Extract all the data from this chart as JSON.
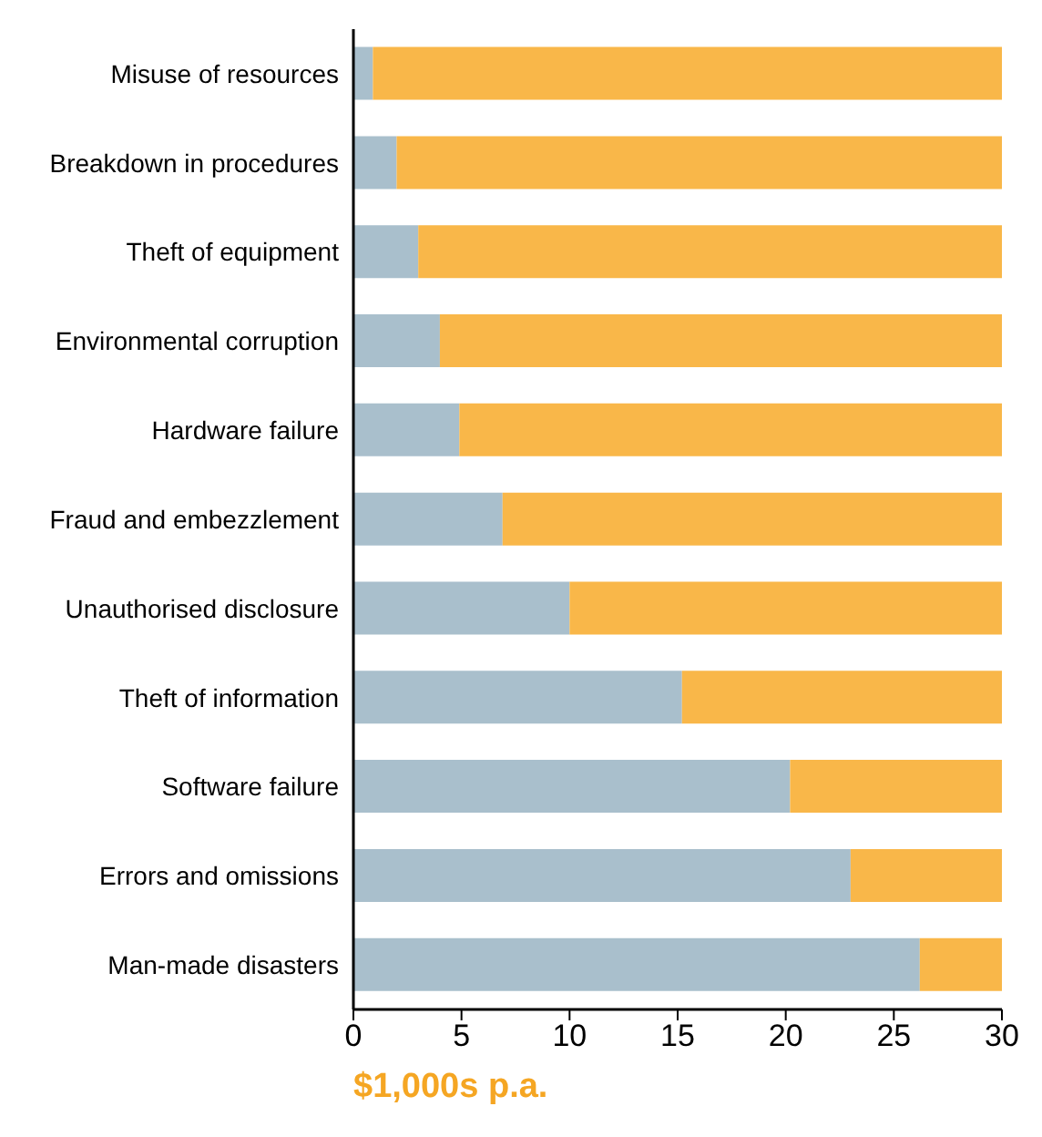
{
  "chart_data": {
    "type": "bar",
    "orientation": "horizontal",
    "stacked": true,
    "xlabel": "$1,000s p.a.",
    "categories": [
      "Misuse of resources",
      "Breakdown in procedures",
      "Theft of equipment",
      "Environmental corruption",
      "Hardware failure",
      "Fraud and embezzlement",
      "Unauthorised disclosure",
      "Theft of information",
      "Software failure",
      "Errors and omissions",
      "Man-made disasters"
    ],
    "series": [
      {
        "color": "#a9bfcc",
        "values": [
          0.9,
          2.0,
          3.0,
          4.0,
          4.9,
          6.9,
          10.0,
          15.2,
          20.2,
          23.0,
          26.2
        ]
      },
      {
        "color": "#f9b749",
        "values": [
          29.1,
          28.0,
          27.0,
          26.0,
          25.1,
          23.1,
          20.0,
          14.8,
          9.8,
          7.0,
          3.8
        ]
      }
    ],
    "xlim": [
      0,
      30
    ],
    "xticks": [
      0,
      5,
      10,
      15,
      20,
      25,
      30
    ]
  }
}
